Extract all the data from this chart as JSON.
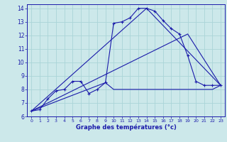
{
  "xlabel": "Graphe des températures (°c)",
  "bg_color": "#cce8ea",
  "grid_color": "#aad4d8",
  "line_color": "#1a1aaa",
  "xlim": [
    -0.5,
    23.5
  ],
  "ylim": [
    6,
    14.3
  ],
  "yticks": [
    6,
    7,
    8,
    9,
    10,
    11,
    12,
    13,
    14
  ],
  "xticks": [
    0,
    1,
    2,
    3,
    4,
    5,
    6,
    7,
    8,
    9,
    10,
    11,
    12,
    13,
    14,
    15,
    16,
    17,
    18,
    19,
    20,
    21,
    22,
    23
  ],
  "curve_x": [
    0,
    1,
    2,
    3,
    4,
    5,
    6,
    7,
    8,
    9,
    10,
    11,
    12,
    13,
    14,
    15,
    16,
    17,
    18,
    19,
    20,
    21,
    22,
    23
  ],
  "curve_y": [
    6.4,
    6.5,
    7.3,
    7.9,
    8.0,
    8.6,
    8.6,
    7.7,
    8.0,
    8.5,
    12.9,
    13.0,
    13.3,
    14.0,
    14.0,
    13.8,
    13.1,
    12.5,
    12.1,
    10.5,
    8.6,
    8.3,
    8.3,
    8.3
  ],
  "line2_x": [
    0,
    19,
    23
  ],
  "line2_y": [
    6.4,
    12.1,
    8.3
  ],
  "line3_x": [
    0,
    14,
    23
  ],
  "line3_y": [
    6.4,
    14.0,
    8.3
  ],
  "flat_x": [
    0,
    9,
    10,
    11,
    12,
    13,
    14,
    15,
    16,
    17,
    18,
    19,
    20,
    21,
    22,
    23
  ],
  "flat_y": [
    6.4,
    8.5,
    8.0,
    8.0,
    8.0,
    8.0,
    8.0,
    8.0,
    8.0,
    8.0,
    8.0,
    8.0,
    8.0,
    8.0,
    8.0,
    8.3
  ]
}
